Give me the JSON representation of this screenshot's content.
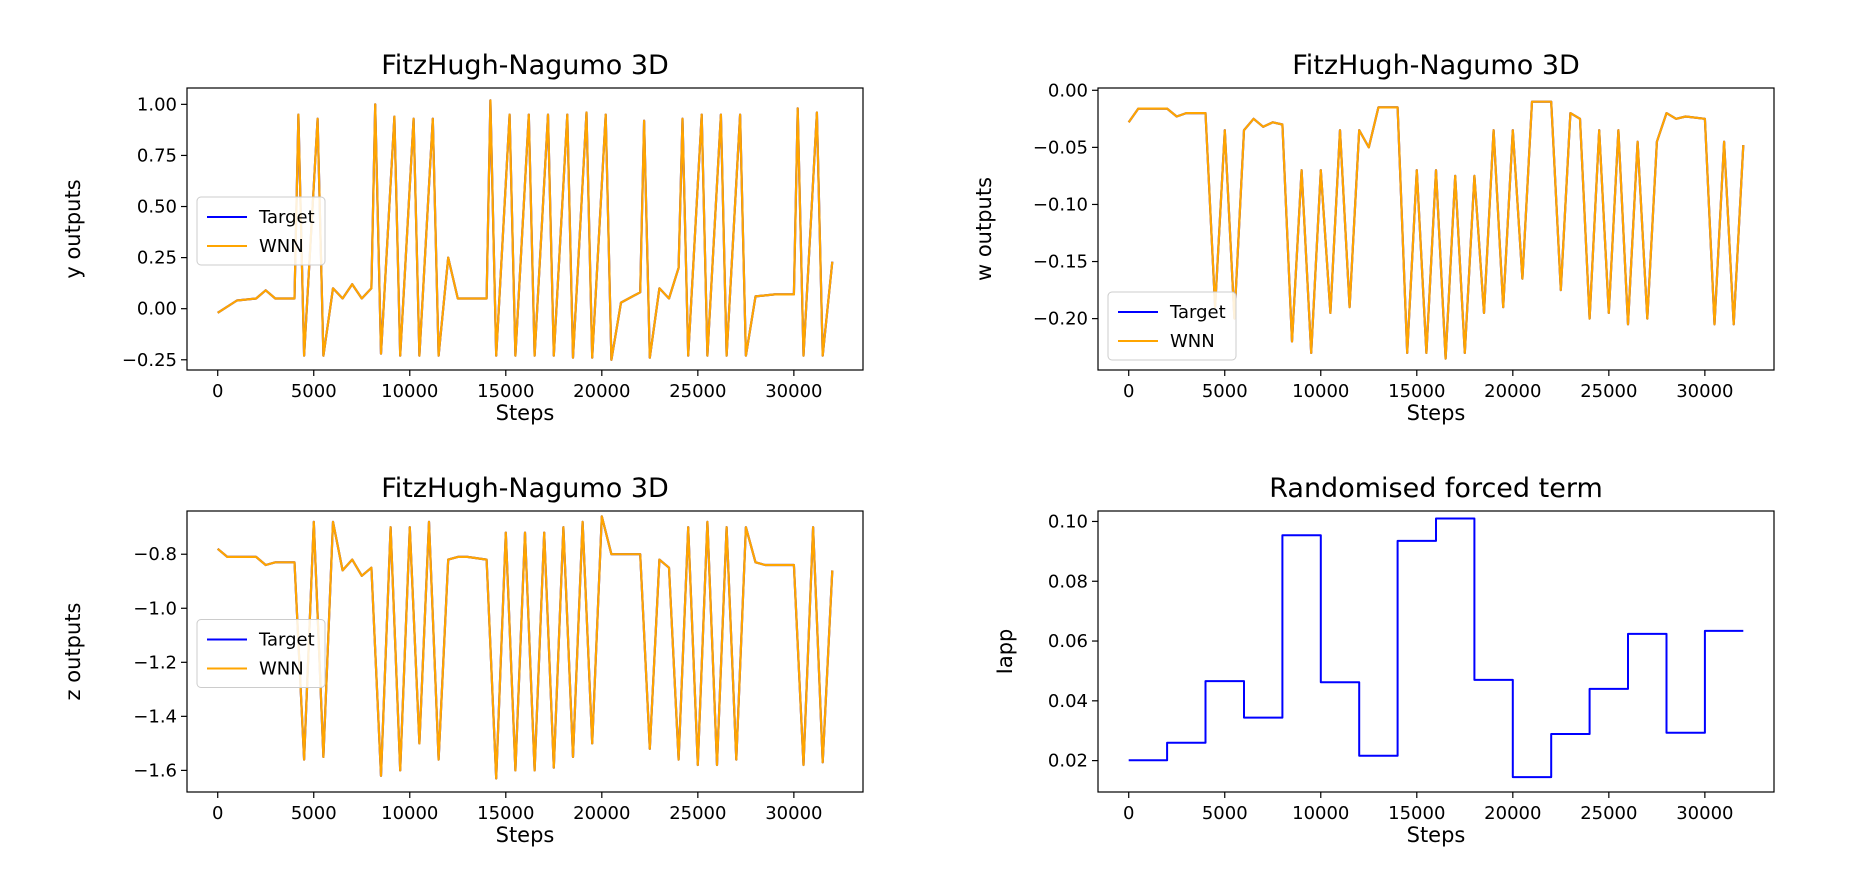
{
  "charts": [
    {
      "type": "line",
      "title": "FitzHugh-Nagumo 3D",
      "xlabel": "Steps",
      "ylabel": "y outputs",
      "xlim": [
        -1600,
        33600
      ],
      "ylim": [
        -0.3,
        1.08
      ],
      "xticks": [
        0,
        5000,
        10000,
        15000,
        20000,
        25000,
        30000
      ],
      "yticks": [
        -0.25,
        0.0,
        0.25,
        0.5,
        0.75,
        1.0
      ],
      "ytick_labels": [
        "−0.25",
        "0.00",
        "0.25",
        "0.50",
        "0.75",
        "1.00"
      ],
      "legend_position": "center-left",
      "series": [
        {
          "name": "Target",
          "color": "#0000ff"
        },
        {
          "name": "WNN",
          "color": "#ffa500"
        }
      ],
      "rest": [
        -0.02,
        0.04,
        0.05,
        0.05
      ],
      "osc_min": -0.24,
      "osc_max": 1.0,
      "x": [
        0,
        1000,
        2000,
        2500,
        3000,
        4000,
        4200,
        4500,
        5200,
        5500,
        6000,
        6500,
        7000,
        7500,
        8000,
        8200,
        8500,
        9200,
        9500,
        10200,
        10500,
        11200,
        11500,
        12000,
        12500,
        14000,
        14200,
        14500,
        15200,
        15500,
        16200,
        16500,
        17200,
        17500,
        18200,
        18500,
        19200,
        19500,
        20200,
        20500,
        21000,
        22000,
        22200,
        22500,
        23000,
        23500,
        24000,
        24200,
        24500,
        25200,
        25500,
        26200,
        26500,
        27200,
        27500,
        28000,
        29000,
        30000,
        30200,
        30500,
        31200,
        31500,
        32000
      ],
      "y": [
        -0.02,
        0.04,
        0.05,
        0.09,
        0.05,
        0.05,
        0.95,
        -0.23,
        0.93,
        -0.23,
        0.1,
        0.05,
        0.12,
        0.05,
        0.1,
        1.0,
        -0.22,
        0.94,
        -0.23,
        0.93,
        -0.23,
        0.93,
        -0.23,
        0.25,
        0.05,
        0.05,
        1.02,
        -0.23,
        0.95,
        -0.23,
        0.95,
        -0.23,
        0.95,
        -0.23,
        0.95,
        -0.24,
        0.96,
        -0.24,
        0.95,
        -0.25,
        0.03,
        0.08,
        0.92,
        -0.24,
        0.1,
        0.05,
        0.2,
        0.93,
        -0.23,
        0.95,
        -0.23,
        0.95,
        -0.23,
        0.95,
        -0.23,
        0.06,
        0.07,
        0.07,
        0.98,
        -0.23,
        0.96,
        -0.23,
        0.23
      ]
    },
    {
      "type": "line",
      "title": "FitzHugh-Nagumo 3D",
      "xlabel": "Steps",
      "ylabel": "w outputs",
      "xlim": [
        -1600,
        33600
      ],
      "ylim": [
        -0.245,
        0.002
      ],
      "xticks": [
        0,
        5000,
        10000,
        15000,
        20000,
        25000,
        30000
      ],
      "yticks": [
        -0.2,
        -0.15,
        -0.1,
        -0.05,
        0.0
      ],
      "ytick_labels": [
        "−0.20",
        "−0.15",
        "−0.10",
        "−0.05",
        "0.00"
      ],
      "legend_position": "lower-left",
      "series": [
        {
          "name": "Target",
          "color": "#0000ff"
        },
        {
          "name": "WNN",
          "color": "#ffa500"
        }
      ],
      "x": [
        0,
        500,
        1000,
        2000,
        2500,
        3000,
        4000,
        4500,
        5000,
        5500,
        6000,
        6500,
        7000,
        7500,
        8000,
        8500,
        9000,
        9500,
        10000,
        10500,
        11000,
        11500,
        12000,
        12500,
        13000,
        14000,
        14500,
        15000,
        15500,
        16000,
        16500,
        17000,
        17500,
        18000,
        18500,
        19000,
        19500,
        20000,
        20500,
        21000,
        21500,
        22000,
        22500,
        23000,
        23500,
        24000,
        24500,
        25000,
        25500,
        26000,
        26500,
        27000,
        27500,
        28000,
        28500,
        29000,
        30000,
        30500,
        31000,
        31500,
        32000
      ],
      "y": [
        -0.028,
        -0.016,
        -0.016,
        -0.016,
        -0.023,
        -0.02,
        -0.02,
        -0.19,
        -0.035,
        -0.2,
        -0.035,
        -0.025,
        -0.032,
        -0.028,
        -0.03,
        -0.22,
        -0.07,
        -0.23,
        -0.07,
        -0.195,
        -0.035,
        -0.19,
        -0.035,
        -0.05,
        -0.015,
        -0.015,
        -0.23,
        -0.07,
        -0.23,
        -0.07,
        -0.235,
        -0.075,
        -0.23,
        -0.075,
        -0.195,
        -0.035,
        -0.19,
        -0.035,
        -0.165,
        -0.01,
        -0.01,
        -0.01,
        -0.175,
        -0.02,
        -0.025,
        -0.2,
        -0.035,
        -0.195,
        -0.035,
        -0.205,
        -0.045,
        -0.2,
        -0.045,
        -0.02,
        -0.025,
        -0.023,
        -0.025,
        -0.205,
        -0.045,
        -0.205,
        -0.048
      ]
    },
    {
      "type": "line",
      "title": "FitzHugh-Nagumo 3D",
      "xlabel": "Steps",
      "ylabel": "z outputs",
      "xlim": [
        -1600,
        33600
      ],
      "ylim": [
        -1.68,
        -0.64
      ],
      "xticks": [
        0,
        5000,
        10000,
        15000,
        20000,
        25000,
        30000
      ],
      "yticks": [
        -1.6,
        -1.4,
        -1.2,
        -1.0,
        -0.8
      ],
      "ytick_labels": [
        "−1.6",
        "−1.4",
        "−1.2",
        "−1.0",
        "−0.8"
      ],
      "legend_position": "center-left",
      "series": [
        {
          "name": "Target",
          "color": "#0000ff"
        },
        {
          "name": "WNN",
          "color": "#ffa500"
        }
      ],
      "x": [
        0,
        500,
        1000,
        2000,
        2500,
        3000,
        4000,
        4500,
        5000,
        5500,
        6000,
        6500,
        7000,
        7500,
        8000,
        8500,
        9000,
        9500,
        10000,
        10500,
        11000,
        11500,
        12000,
        12500,
        13000,
        14000,
        14500,
        15000,
        15500,
        16000,
        16500,
        17000,
        17500,
        18000,
        18500,
        19000,
        19500,
        20000,
        20500,
        21000,
        21500,
        22000,
        22500,
        23000,
        23500,
        24000,
        24500,
        25000,
        25500,
        26000,
        26500,
        27000,
        27500,
        28000,
        28500,
        29000,
        30000,
        30500,
        31000,
        31500,
        32000
      ],
      "y": [
        -0.78,
        -0.81,
        -0.81,
        -0.81,
        -0.84,
        -0.83,
        -0.83,
        -1.56,
        -0.68,
        -1.55,
        -0.68,
        -0.86,
        -0.82,
        -0.88,
        -0.85,
        -1.62,
        -0.7,
        -1.6,
        -0.7,
        -1.5,
        -0.68,
        -1.56,
        -0.82,
        -0.81,
        -0.81,
        -0.82,
        -1.63,
        -0.72,
        -1.6,
        -0.72,
        -1.6,
        -0.72,
        -1.59,
        -0.7,
        -1.55,
        -0.68,
        -1.5,
        -0.66,
        -0.8,
        -0.8,
        -0.8,
        -0.8,
        -1.52,
        -0.82,
        -0.85,
        -1.56,
        -0.7,
        -1.58,
        -0.68,
        -1.58,
        -0.7,
        -1.56,
        -0.7,
        -0.83,
        -0.84,
        -0.84,
        -0.84,
        -1.58,
        -0.7,
        -1.57,
        -0.86
      ]
    },
    {
      "type": "line",
      "step": true,
      "title": "Randomised forced term",
      "xlabel": "Steps",
      "ylabel": "Iapp",
      "xlim": [
        -1600,
        33600
      ],
      "ylim": [
        0.0095,
        0.1035
      ],
      "xticks": [
        0,
        5000,
        10000,
        15000,
        20000,
        25000,
        30000
      ],
      "yticks": [
        0.02,
        0.04,
        0.06,
        0.08,
        0.1
      ],
      "ytick_labels": [
        "0.02",
        "0.04",
        "0.06",
        "0.08",
        "0.10"
      ],
      "series": [
        {
          "name": "Iapp",
          "color": "#0000ff"
        }
      ],
      "x": [
        0,
        2000,
        4000,
        6000,
        8000,
        10000,
        12000,
        14000,
        16000,
        18000,
        20000,
        22000,
        24000,
        26000,
        28000,
        30000,
        32000
      ],
      "y": [
        0.0201,
        0.026,
        0.0466,
        0.0344,
        0.0954,
        0.0462,
        0.0216,
        0.0935,
        0.101,
        0.047,
        0.0145,
        0.0289,
        0.044,
        0.0624,
        0.0293,
        0.0634,
        0.0634
      ]
    }
  ]
}
